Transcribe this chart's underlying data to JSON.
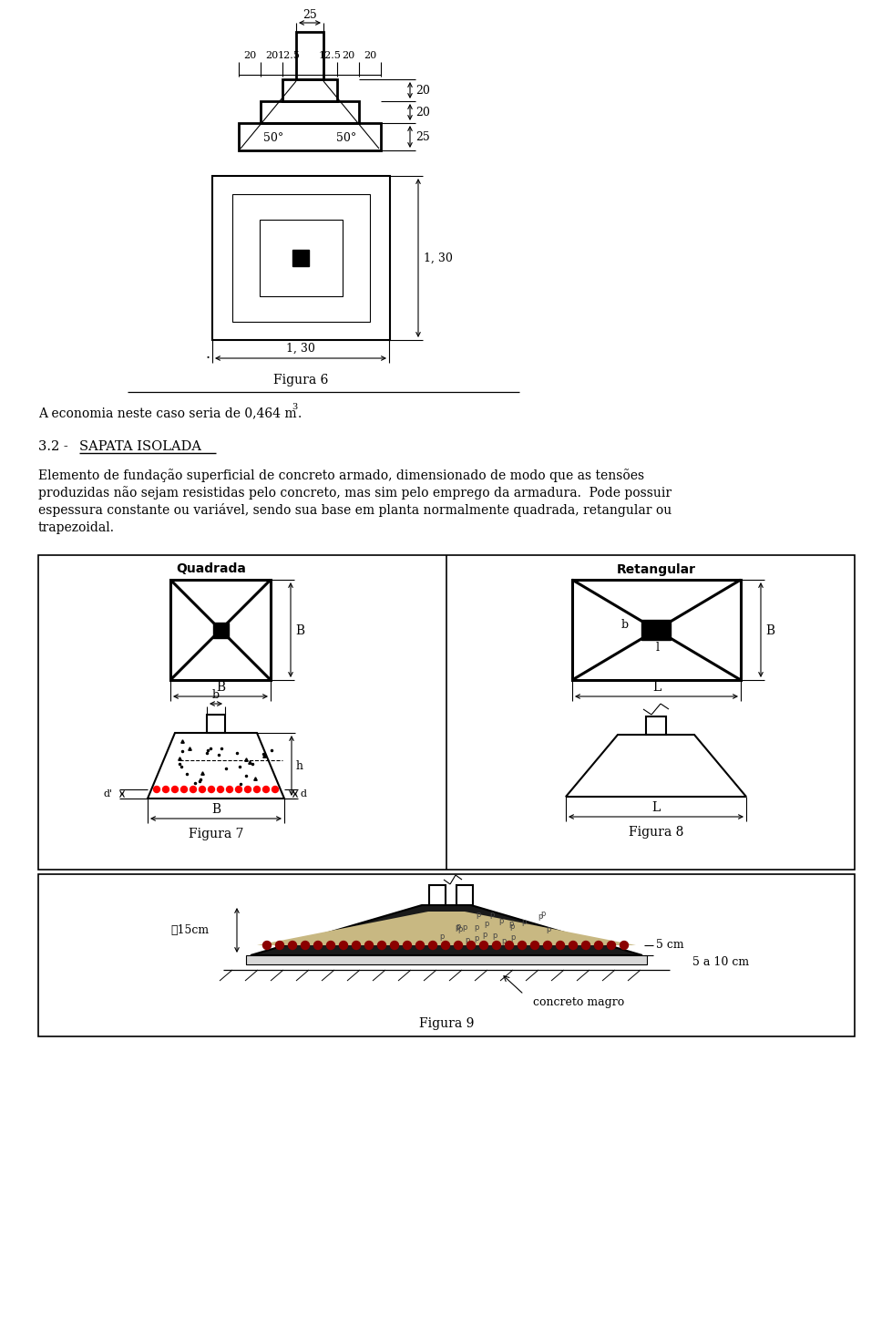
{
  "fig_width": 9.6,
  "fig_height": 14.24,
  "bg_color": "#ffffff",
  "text_color": "#000000",
  "economia_text": "A economia neste caso seria de 0,464 m",
  "figura6_label": "Figura 6",
  "figura7_label": "Figura 7",
  "figura8_label": "Figura 8",
  "figura9_label": "Figura 9",
  "dim_25": "25",
  "dim_right_20a": "20",
  "dim_right_20b": "20",
  "dim_right_25": "25",
  "dim_50L": "50°",
  "dim_50R": "50°",
  "dim_130v": "1, 30",
  "dim_130h": "1, 30",
  "label_B_q": "B",
  "label_B_q2": "B",
  "label_B_fig7": "B",
  "label_b_fig7": "b",
  "label_h_fig7": "h",
  "label_d_fig7": "d'",
  "label_d2_fig7": "d",
  "label_quadrada": "Quadrada",
  "label_retangular": "Retangular",
  "label_B_rect": "B",
  "label_b_rect": "b",
  "label_l_rect": "l",
  "label_L_rect": "L",
  "label_L_fig8": "L",
  "label_15cm": "≧15cm",
  "label_5cm": "5 cm",
  "label_5a10cm": "5 a 10 cm",
  "label_concreto_magro": "concreto magro",
  "horiz_labels": [
    "20",
    "20",
    "12.5",
    "12.5",
    "20",
    "20"
  ],
  "section_title_plain": "3.2 - ",
  "section_title_underline": "SAPATA ISOLADA",
  "para_line1": "Elemento de fundação superficial de concreto armado, dimensionado de modo que as tensões",
  "para_line2": "produzidas não sejam resistidas pelo concreto, mas sim pelo emprego da armadura.  Pode possuir",
  "para_line3": "espessura constante ou variável, sendo sua base em planta normalmente quadrada, retangular ou",
  "para_line4": "trapezoidal."
}
